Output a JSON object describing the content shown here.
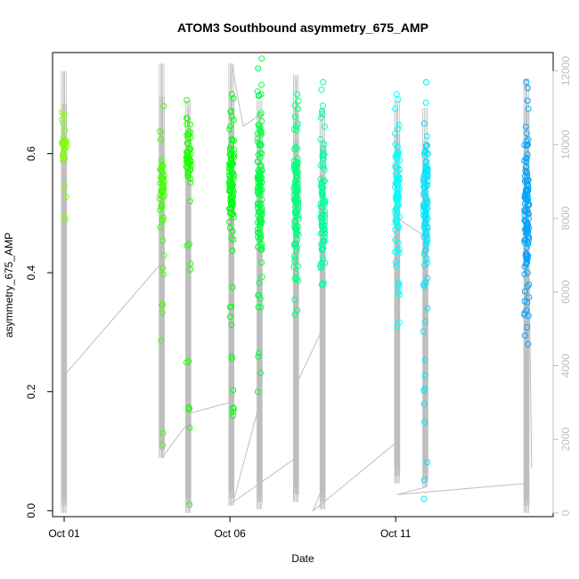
{
  "chart_data": {
    "type": "scatter",
    "title": "ATOM3 Southbound asymmetry_675_AMP",
    "xlabel": "Date",
    "ylabel": "asymmetry_675_AMP",
    "x_unit": "days in October",
    "xlim": [
      0.65,
      15.75
    ],
    "ylim": [
      -0.01,
      0.77
    ],
    "y2lim": [
      -100,
      12500
    ],
    "x_ticks": [
      1,
      6,
      11
    ],
    "x_tick_labels": [
      "Oct 01",
      "Oct 06",
      "Oct 11"
    ],
    "y_ticks": [
      0.0,
      0.2,
      0.4,
      0.6
    ],
    "y_tick_labels": [
      "0.0",
      "0.2",
      "0.4",
      "0.6"
    ],
    "y2_ticks": [
      0,
      2000,
      4000,
      6000,
      8000,
      10000,
      12000
    ],
    "y2_tick_labels": [
      "0",
      "2000",
      "4000",
      "6000",
      "8000",
      "10000",
      "12000"
    ],
    "grid": false,
    "legend": "none",
    "line_color": "#bebebe",
    "clusters": [
      {
        "x": 1.0,
        "color": "#7fff00",
        "y_min": 0.49,
        "y_max": 0.67,
        "y_center": 0.62,
        "n": 30
      },
      {
        "x": 3.95,
        "color": "#40ff00",
        "y_min": 0.11,
        "y_max": 0.68,
        "y_center": 0.55,
        "n": 50
      },
      {
        "x": 4.75,
        "color": "#20ff00",
        "y_min": 0.01,
        "y_max": 0.69,
        "y_center": 0.6,
        "n": 70
      },
      {
        "x": 6.05,
        "color": "#00ff10",
        "y_min": 0.16,
        "y_max": 0.7,
        "y_center": 0.55,
        "n": 100
      },
      {
        "x": 6.9,
        "color": "#00ff40",
        "y_min": 0.2,
        "y_max": 0.76,
        "y_center": 0.55,
        "n": 120
      },
      {
        "x": 8.0,
        "color": "#00ff80",
        "y_min": 0.33,
        "y_max": 0.7,
        "y_center": 0.52,
        "n": 110
      },
      {
        "x": 8.8,
        "color": "#00ffa0",
        "y_min": 0.38,
        "y_max": 0.72,
        "y_center": 0.5,
        "n": 90
      },
      {
        "x": 11.05,
        "color": "#00ffff",
        "y_min": 0.31,
        "y_max": 0.7,
        "y_center": 0.53,
        "n": 80
      },
      {
        "x": 11.9,
        "color": "#00e5ff",
        "y_min": 0.02,
        "y_max": 0.72,
        "y_center": 0.52,
        "n": 110
      },
      {
        "x": 14.95,
        "color": "#00a5ff",
        "y_min": 0.28,
        "y_max": 0.72,
        "y_center": 0.5,
        "n": 120
      }
    ],
    "y2_path": [
      [
        1.0,
        1000
      ],
      [
        1.0,
        12000
      ],
      [
        1.07,
        3800
      ],
      [
        3.95,
        6800
      ],
      [
        3.95,
        12200
      ],
      [
        3.95,
        1500
      ],
      [
        4.7,
        2400
      ],
      [
        4.75,
        11000
      ],
      [
        4.75,
        2700
      ],
      [
        6.0,
        3000
      ],
      [
        6.05,
        12200
      ],
      [
        6.4,
        10500
      ],
      [
        6.9,
        10800
      ],
      [
        6.9,
        3000
      ],
      [
        6.1,
        300
      ],
      [
        8.0,
        1500
      ],
      [
        8.0,
        11800
      ],
      [
        8.0,
        3500
      ],
      [
        8.8,
        5000
      ],
      [
        8.8,
        700
      ],
      [
        8.5,
        50
      ],
      [
        11.0,
        1900
      ],
      [
        11.05,
        11000
      ],
      [
        11.05,
        8000
      ],
      [
        11.9,
        7500
      ],
      [
        11.9,
        700
      ],
      [
        11.05,
        500
      ],
      [
        14.9,
        800
      ],
      [
        14.95,
        11800
      ],
      [
        15.1,
        1200
      ]
    ],
    "y2_spikes": [
      {
        "x": 1.0,
        "from": 0,
        "to": 12000
      },
      {
        "x": 3.95,
        "from": 1500,
        "to": 12200
      },
      {
        "x": 4.75,
        "from": 0,
        "to": 11200
      },
      {
        "x": 6.05,
        "from": 200,
        "to": 12200
      },
      {
        "x": 6.9,
        "from": 100,
        "to": 11200
      },
      {
        "x": 8.0,
        "from": 300,
        "to": 11900
      },
      {
        "x": 8.8,
        "from": 100,
        "to": 11000
      },
      {
        "x": 11.05,
        "from": 800,
        "to": 11200
      },
      {
        "x": 11.9,
        "from": 700,
        "to": 11000
      },
      {
        "x": 14.95,
        "from": 0,
        "to": 11800
      }
    ]
  }
}
